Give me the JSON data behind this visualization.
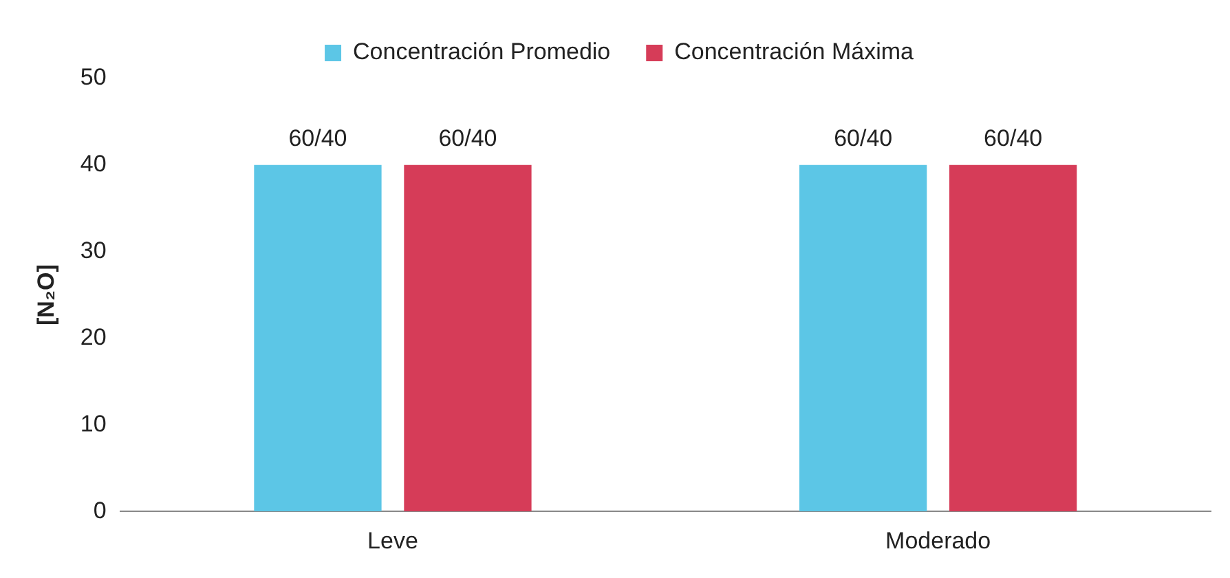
{
  "chart_data": {
    "type": "bar",
    "ylabel": "[N₂O]",
    "categories": [
      "Leve",
      "Moderado"
    ],
    "series": [
      {
        "name": "Concentración Promedio",
        "color": "#5cc6e6",
        "values": [
          40,
          40
        ],
        "value_labels": [
          "60/40",
          "60/40"
        ]
      },
      {
        "name": "Concentración Máxima",
        "color": "#d63c58",
        "values": [
          40,
          40
        ],
        "value_labels": [
          "60/40",
          "60/40"
        ]
      }
    ],
    "ylim": [
      0,
      50
    ],
    "yticks": [
      0,
      10,
      20,
      30,
      40,
      50
    ],
    "grid": false,
    "legend": "top"
  }
}
